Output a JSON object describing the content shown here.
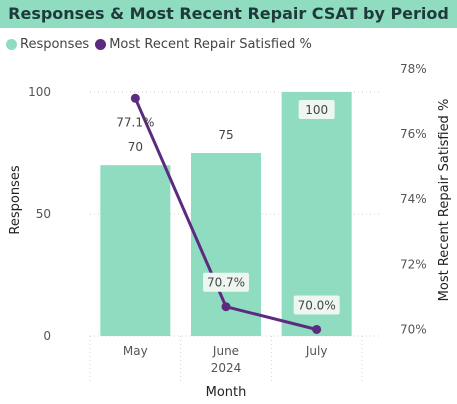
{
  "chart_data": {
    "type": "bar",
    "title": "Responses & Most Recent Repair CSAT by Period",
    "categories": [
      "May",
      "June",
      "July"
    ],
    "category_group": "2024",
    "xlabel": "Month",
    "ylabel": "Responses",
    "y2label": "Most Recent Repair Satisfied %",
    "ylim": [
      0,
      100
    ],
    "yticks": [
      "0",
      "50",
      "100"
    ],
    "y2lim": [
      69.8,
      78
    ],
    "y2ticks": [
      "70%",
      "72%",
      "74%",
      "76%",
      "78%"
    ],
    "y2tick_values": [
      70,
      72,
      74,
      76,
      78
    ],
    "series": [
      {
        "name": "Responses",
        "kind": "bar",
        "axis": "left",
        "values": [
          70,
          75,
          100
        ],
        "labels": [
          "70",
          "75",
          "100"
        ],
        "color": "#8FDCC0"
      },
      {
        "name": "Most Recent Repair Satisfied %",
        "kind": "line",
        "axis": "right",
        "values": [
          77.1,
          70.7,
          70.0
        ],
        "labels": [
          "77.1%",
          "70.7%",
          "70.0%"
        ],
        "color": "#5C2A7E"
      }
    ],
    "legend_position": "top-left",
    "grid": "dotted horizontal"
  }
}
